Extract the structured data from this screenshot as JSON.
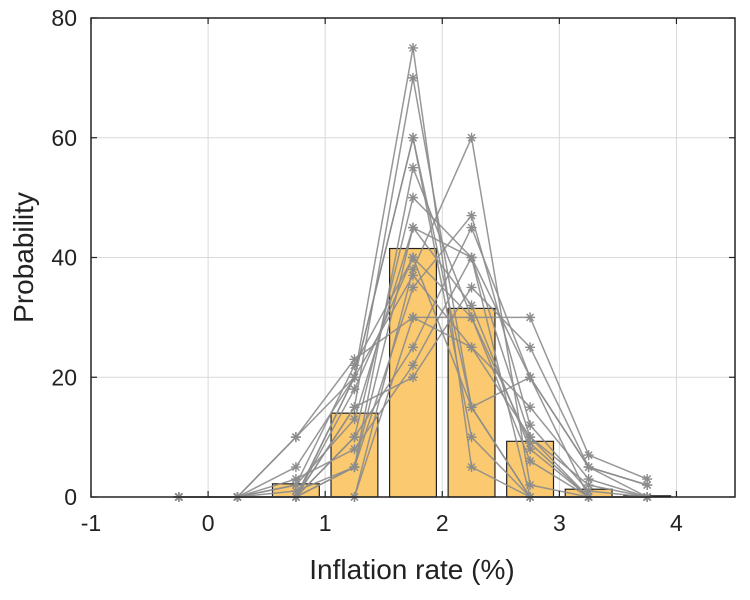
{
  "chart_data": {
    "type": "bar",
    "xlabel": "Inflation rate (%)",
    "ylabel": "Probability",
    "xlim": [
      -1,
      4.5
    ],
    "ylim": [
      0,
      80
    ],
    "xticks": [
      "-1",
      "0",
      "1",
      "2",
      "3",
      "4"
    ],
    "yticks": [
      "0",
      "20",
      "40",
      "60",
      "80"
    ],
    "grid": true,
    "bar_color": "#fbc96f",
    "line_color": "#8c8c8c",
    "bars": {
      "x": [
        0.75,
        1.25,
        1.75,
        2.25,
        2.75,
        3.25,
        3.75
      ],
      "values": [
        2.2,
        14,
        41.5,
        31.5,
        9.3,
        1.3,
        0.2
      ]
    },
    "series_x": [
      -0.25,
      0.25,
      0.75,
      1.25,
      1.75,
      2.25,
      2.75,
      3.25,
      3.75
    ],
    "series": [
      {
        "values": [
          0,
          0,
          0,
          20,
          75,
          5,
          0,
          0,
          0
        ]
      },
      {
        "values": [
          0,
          0,
          0,
          15,
          70,
          15,
          0,
          0,
          0
        ]
      },
      {
        "values": [
          0,
          0,
          10,
          20,
          60,
          10,
          0,
          0,
          0
        ]
      },
      {
        "values": [
          0,
          0,
          5,
          20,
          60,
          15,
          0,
          0,
          0
        ]
      },
      {
        "values": [
          0,
          0,
          0,
          10,
          50,
          40,
          0,
          0,
          0
        ]
      },
      {
        "values": [
          0,
          0,
          0,
          5,
          45,
          40,
          10,
          0,
          0
        ]
      },
      {
        "values": [
          0,
          0,
          2,
          22,
          40,
          30,
          6,
          0,
          0
        ]
      },
      {
        "values": [
          0,
          0,
          0,
          0,
          38,
          60,
          2,
          0,
          0
        ]
      },
      {
        "values": [
          0,
          0,
          0,
          5,
          35,
          47,
          12,
          1,
          0
        ]
      },
      {
        "values": [
          0,
          0,
          10,
          23,
          30,
          25,
          10,
          2,
          0
        ]
      },
      {
        "values": [
          0,
          0,
          0,
          10,
          25,
          45,
          20,
          0,
          0
        ]
      },
      {
        "values": [
          0,
          0,
          0,
          15,
          20,
          35,
          25,
          5,
          0
        ]
      },
      {
        "values": [
          0,
          0,
          0,
          0,
          30,
          30,
          30,
          7,
          3
        ]
      },
      {
        "values": [
          0,
          0,
          0,
          20,
          37,
          25,
          15,
          3,
          0
        ]
      },
      {
        "values": [
          0,
          0,
          2,
          13,
          45,
          32,
          8,
          0,
          0
        ]
      },
      {
        "values": [
          0,
          0,
          0,
          18,
          40,
          15,
          20,
          5,
          2
        ]
      },
      {
        "values": [
          0,
          0,
          1,
          5,
          55,
          30,
          9,
          0,
          0
        ]
      },
      {
        "values": [
          0,
          0,
          3,
          8,
          22,
          40,
          20,
          5,
          2
        ]
      }
    ]
  }
}
